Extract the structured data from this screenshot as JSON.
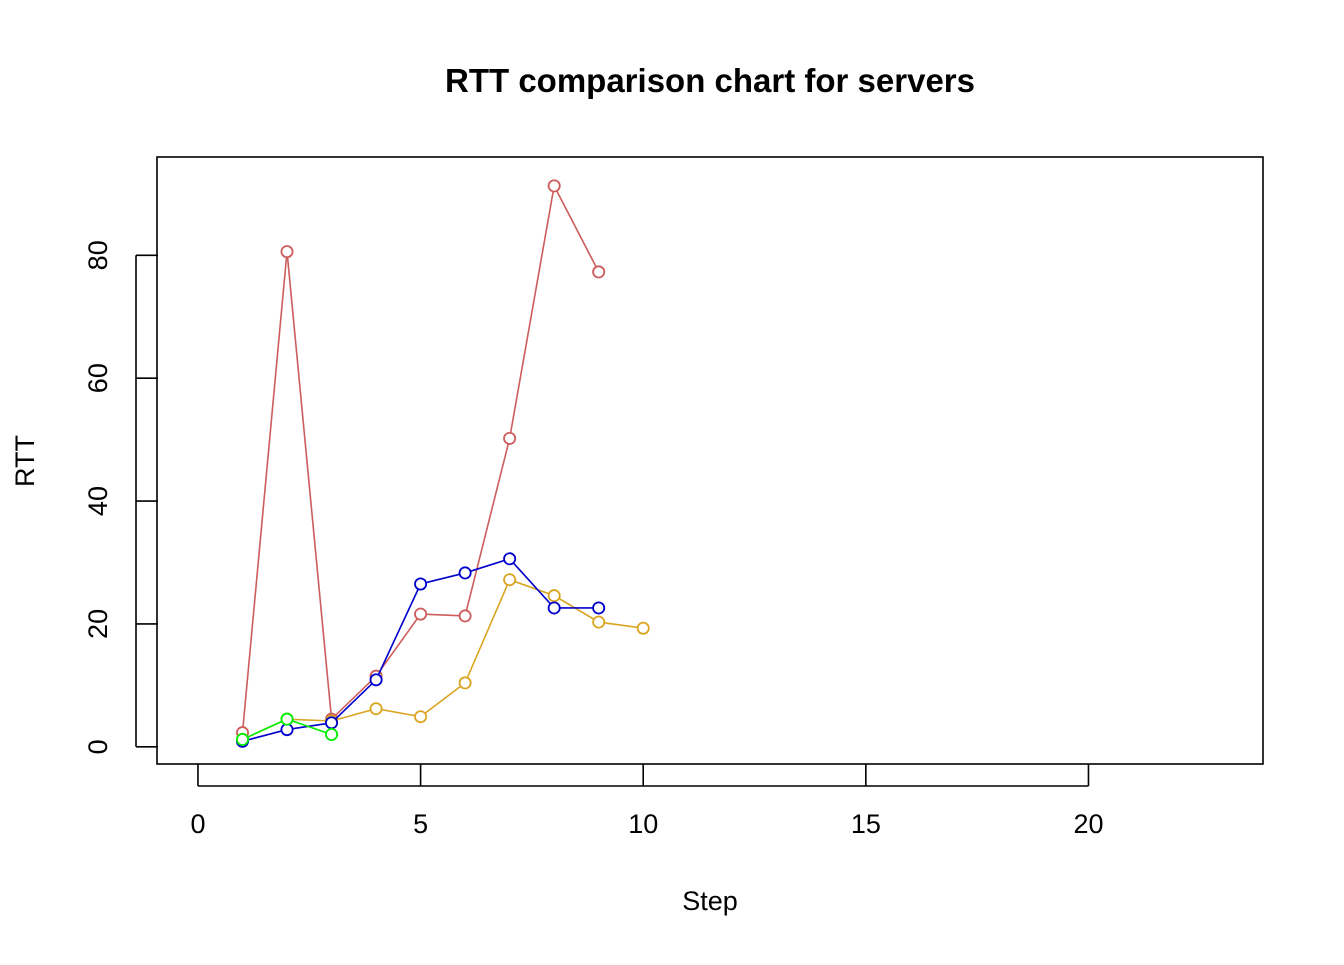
{
  "chart_data": {
    "type": "line",
    "title": "RTT comparison chart for servers",
    "xlabel": "Step",
    "ylabel": "RTT",
    "xlim": [
      -0.92,
      23.92
    ],
    "ylim": [
      -2.8,
      96.0
    ],
    "x_ticks": [
      0,
      5,
      10,
      15,
      20
    ],
    "y_ticks": [
      0,
      20,
      40,
      60,
      80
    ],
    "grid": false,
    "legend": "none",
    "series": [
      {
        "color": "#cd5c5c",
        "x": [
          1,
          2,
          3,
          4,
          5,
          6,
          7,
          8,
          9
        ],
        "values": [
          2.3,
          80.6,
          4.5,
          11.5,
          21.6,
          21.3,
          50.2,
          91.3,
          77.3
        ]
      },
      {
        "color": "#daa520",
        "x": [
          1,
          2,
          3,
          4,
          5,
          6,
          7,
          8,
          9,
          10
        ],
        "values": [
          1.2,
          4.5,
          4.2,
          6.2,
          4.9,
          10.4,
          27.2,
          24.6,
          20.3,
          19.3
        ]
      },
      {
        "color": "#0000cd",
        "x": [
          1,
          2,
          3,
          4,
          5,
          6,
          7,
          8,
          9
        ],
        "values": [
          0.9,
          2.8,
          3.9,
          10.9,
          26.5,
          28.3,
          30.6,
          22.6,
          22.6
        ]
      },
      {
        "color": "#00ee00",
        "x": [
          1,
          2,
          3
        ],
        "values": [
          1.2,
          4.5,
          2.0
        ]
      }
    ]
  }
}
